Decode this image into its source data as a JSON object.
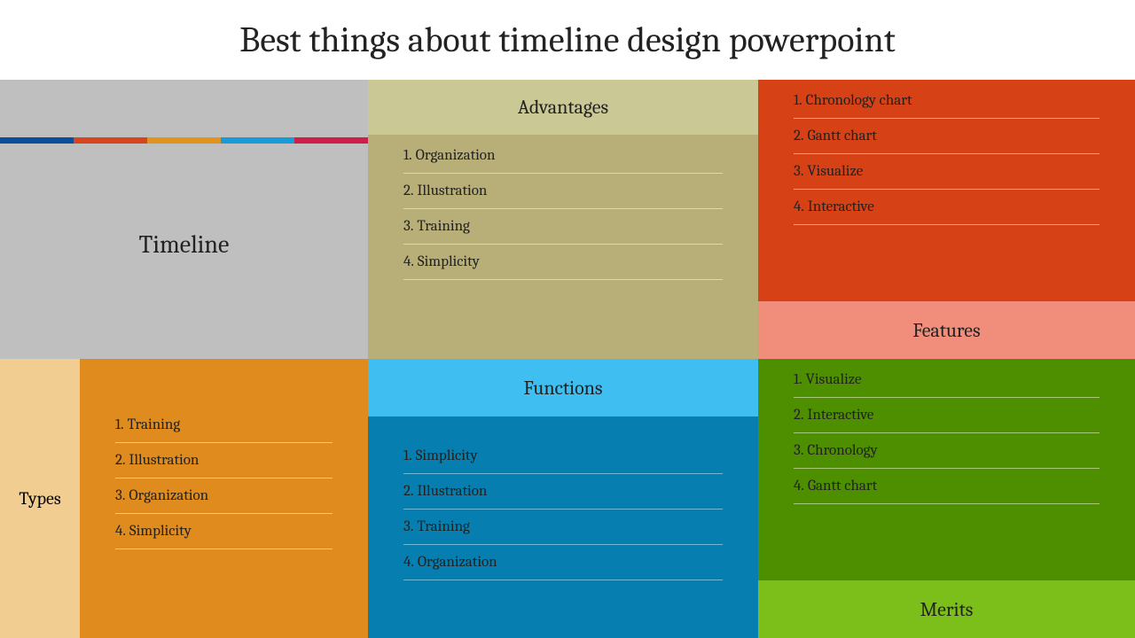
{
  "title": "Best things about timeline design powerpoint",
  "timeline": {
    "label": "Timeline",
    "top_bg": "#bfbfbf",
    "body_bg": "#bfbfbf",
    "stripe_colors": [
      "#0b4f9b",
      "#d6451e",
      "#e0931f",
      "#1a9bd7",
      "#d01e4a"
    ]
  },
  "advantages": {
    "header": "Advantages",
    "header_bg": "#cac895",
    "body_bg": "#b8ae78",
    "items": [
      "Organization",
      "Illustration",
      "Training",
      "Simplicity"
    ]
  },
  "features": {
    "header": "Features",
    "header_bg": "#f08e7b",
    "body_bg": "#d64116",
    "items": [
      "Chronology chart",
      "Gantt chart",
      "Visualize",
      "Interactive"
    ]
  },
  "types": {
    "header": "Types",
    "header_bg": "#f2cd92",
    "body_bg": "#df8b1d",
    "items": [
      "Training",
      "Illustration",
      "Organization",
      "Simplicity"
    ]
  },
  "functions": {
    "header": "Functions",
    "header_bg": "#3fbef2",
    "body_bg": "#067fb0",
    "items": [
      "Simplicity",
      "Illustration",
      "Training",
      "Organization"
    ]
  },
  "merits": {
    "header": "Merits",
    "header_bg": "#7cbf1a",
    "body_bg": "#4e8f00",
    "items": [
      "Visualize",
      "Interactive",
      "Chronology",
      "Gantt chart"
    ]
  }
}
